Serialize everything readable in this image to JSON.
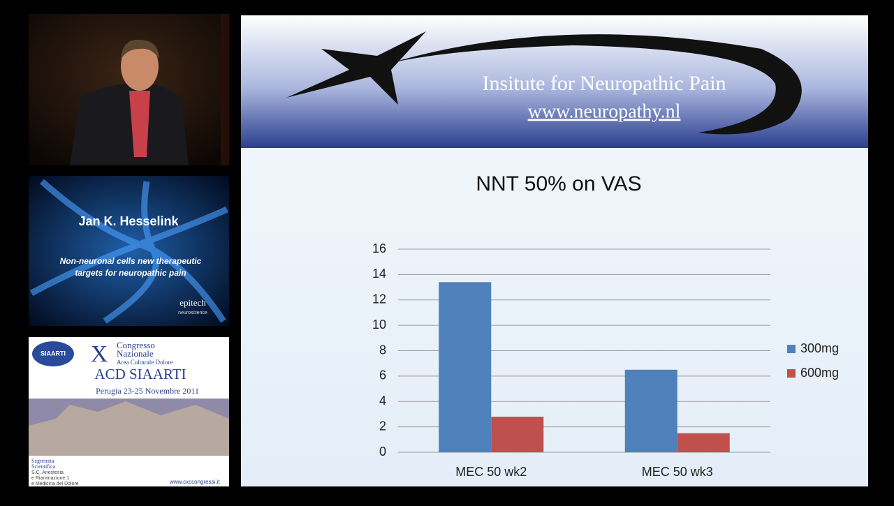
{
  "speaker_panel": {
    "name": "Jan K. Hesselink",
    "talk_title_lines": [
      "Non-neuronal cells new therapeutic",
      "targets for neuropathic pain"
    ],
    "logo": "epitech",
    "logo_sub": "neuroscience"
  },
  "congress_panel": {
    "badge": "SIAARTI",
    "numeral": "X",
    "line1": "Congresso",
    "line2": "Nazionale",
    "line3": "Area Culturale Dolore",
    "name": "ACD SIAARTI",
    "dates": "Perugia 23-25 Novembre 2011",
    "secretariat_lines": [
      "Segreteria",
      "Scientifica",
      "S.C. Anestesia",
      "e Rianimazione 1",
      "e Medicina del Dolore"
    ],
    "website": "www.cxccongressi.it"
  },
  "slide": {
    "header_title": "Insitute for Neuropathic Pain",
    "header_url": "www.neuropathy.nl"
  },
  "chart_data": {
    "type": "bar",
    "title": "NNT 50% on VAS",
    "categories": [
      "MEC 50 wk2",
      "MEC 50 wk3"
    ],
    "series": [
      {
        "name": "300mg",
        "color": "#4f81bd",
        "values": [
          13.4,
          6.5
        ]
      },
      {
        "name": "600mg",
        "color": "#c0504d",
        "values": [
          2.8,
          1.5
        ]
      }
    ],
    "ylim": [
      0,
      16
    ],
    "yticks": [
      0,
      2,
      4,
      6,
      8,
      10,
      12,
      14,
      16
    ],
    "grid": true,
    "legend": "right"
  }
}
